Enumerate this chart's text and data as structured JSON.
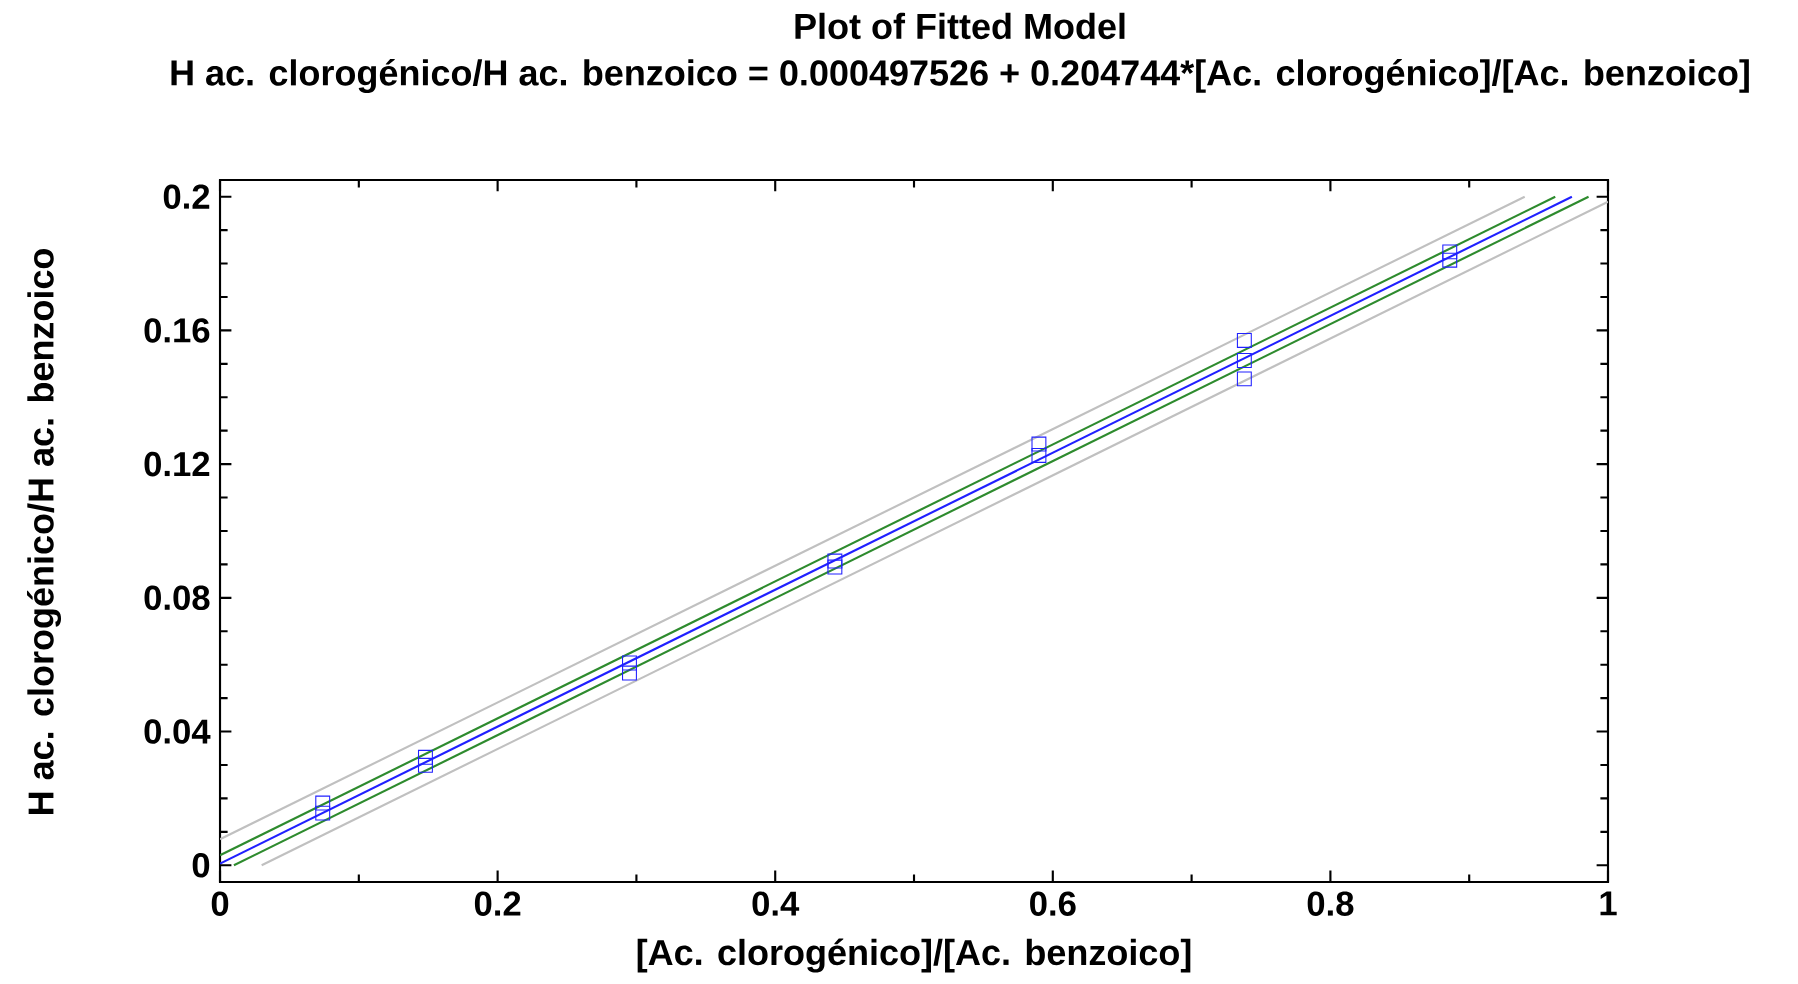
{
  "chart_data": {
    "type": "scatter",
    "title": "Plot of Fitted Model",
    "subtitle": "H ac. clorogénico/H ac. benzoico = 0.000497526 + 0.204744*[Ac. clorogénico]/[Ac. benzoico]",
    "xlabel": "[Ac. clorogénico]/[Ac. benzoico]",
    "ylabel": "H ac. clorogénico/H ac. benzoico",
    "xlim": [
      0,
      1
    ],
    "ylim": [
      -0.005,
      0.205
    ],
    "xticks": [
      0,
      0.2,
      0.4,
      0.6,
      0.8,
      1
    ],
    "yticks": [
      0,
      0.04,
      0.08,
      0.12,
      0.16,
      0.2
    ],
    "grid": false,
    "series": [
      {
        "type": "line",
        "color": "#c0c0c0",
        "x": [
          0,
          0.94
        ],
        "values": [
          0.0078,
          0.2
        ]
      },
      {
        "type": "line",
        "color": "#c0c0c0",
        "x": [
          0.03,
          1
        ],
        "values": [
          0,
          0.1985
        ]
      },
      {
        "type": "line",
        "color": "#2e8b2e",
        "x": [
          0,
          0.962
        ],
        "values": [
          0.003,
          0.2
        ]
      },
      {
        "type": "line",
        "color": "#2e8b2e",
        "x": [
          0.01,
          0.986
        ],
        "values": [
          0,
          0.2
        ]
      },
      {
        "type": "line",
        "color": "#2020ff",
        "x": [
          0,
          0.974
        ],
        "values": [
          0.0005,
          0.2
        ]
      },
      {
        "marker": "square",
        "color": "#2020ff",
        "x": [
          0.074,
          0.074,
          0.148,
          0.148,
          0.295,
          0.295,
          0.443,
          0.443,
          0.59,
          0.59,
          0.738,
          0.738,
          0.738,
          0.886,
          0.886
        ],
        "values": [
          0.0186,
          0.0156,
          0.0323,
          0.0299,
          0.0605,
          0.0575,
          0.091,
          0.0892,
          0.126,
          0.1226,
          0.157,
          0.151,
          0.1455,
          0.1835,
          0.181
        ]
      }
    ]
  }
}
